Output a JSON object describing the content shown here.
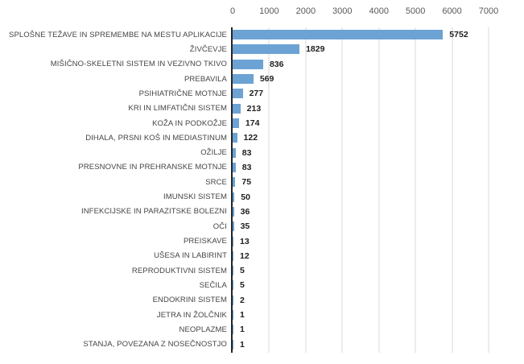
{
  "chart_data": {
    "type": "bar",
    "orientation": "horizontal",
    "title": "",
    "categories": [
      "SPLOŠNE TEŽAVE IN SPREMEMBE NA MESTU APLIKACIJE",
      "ŽIVČEVJE",
      "MIŠIČNO-SKELETNI SISTEM IN VEZIVNO TKIVO",
      "PREBAVILA",
      "PSIHIATRIČNE MOTNJE",
      "KRI IN LIMFATIČNI SISTEM",
      "KOŽA IN PODKOŽJE",
      "DIHALA, PRSNI KOŠ IN MEDIASTINUM",
      "OŽILJE",
      "PRESNOVNE IN PREHRANSKE MOTNJE",
      "SRCE",
      "IMUNSKI SISTEM",
      "INFEKCIJSKE IN PARAZITSKE BOLEZNI",
      "OČI",
      "PREISKAVE",
      "UŠESA IN LABIRINT",
      "REPRODUKTIVNI SISTEM",
      "SEČILA",
      "ENDOKRINI SISTEM",
      "JETRA IN ŽOLČNIK",
      "NEOPLAZME",
      "STANJA, POVEZANA Z NOSEČNOSTJO"
    ],
    "values": [
      5752,
      1829,
      836,
      569,
      277,
      213,
      174,
      122,
      83,
      83,
      75,
      50,
      36,
      35,
      13,
      12,
      5,
      5,
      2,
      1,
      1,
      1
    ],
    "xlabel": "",
    "ylabel": "",
    "xlim": [
      0,
      7000
    ],
    "x_ticks": [
      0,
      1000,
      2000,
      3000,
      4000,
      5000,
      6000,
      7000
    ],
    "grid": "vertical",
    "legend": "none",
    "data_labels": "outside-end",
    "colors": {
      "bar": "#6ca2d4",
      "gridline": "#d9d9d9",
      "axis_line": "#262626",
      "category_label": "#444444",
      "value_label": "#1f1f1f",
      "tick_label": "#595959",
      "background": "#ffffff"
    }
  }
}
